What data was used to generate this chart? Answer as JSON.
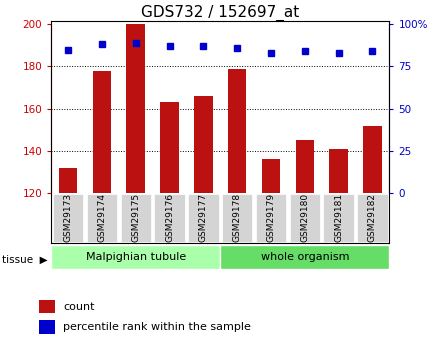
{
  "title": "GDS732 / 152697_at",
  "samples": [
    "GSM29173",
    "GSM29174",
    "GSM29175",
    "GSM29176",
    "GSM29177",
    "GSM29178",
    "GSM29179",
    "GSM29180",
    "GSM29181",
    "GSM29182"
  ],
  "counts": [
    132,
    178,
    200,
    163,
    166,
    179,
    136,
    145,
    141,
    152
  ],
  "percentiles": [
    85,
    88,
    89,
    87,
    87,
    86,
    83,
    84,
    83,
    84
  ],
  "tissue_groups": [
    {
      "label": "Malpighian tubule",
      "start": 0,
      "end": 5,
      "color": "#aaffaa"
    },
    {
      "label": "whole organism",
      "start": 5,
      "end": 10,
      "color": "#66dd66"
    }
  ],
  "bar_color": "#bb1111",
  "marker_color": "#0000cc",
  "ylim_left": [
    120,
    200
  ],
  "ylim_right": [
    0,
    100
  ],
  "yticks_left": [
    120,
    140,
    160,
    180,
    200
  ],
  "yticks_right": [
    0,
    25,
    50,
    75,
    100
  ],
  "grid_values": [
    140,
    160,
    180
  ],
  "left_axis_color": "#cc0000",
  "right_axis_color": "#0000cc",
  "title_fontsize": 11,
  "bar_bottom": 120
}
